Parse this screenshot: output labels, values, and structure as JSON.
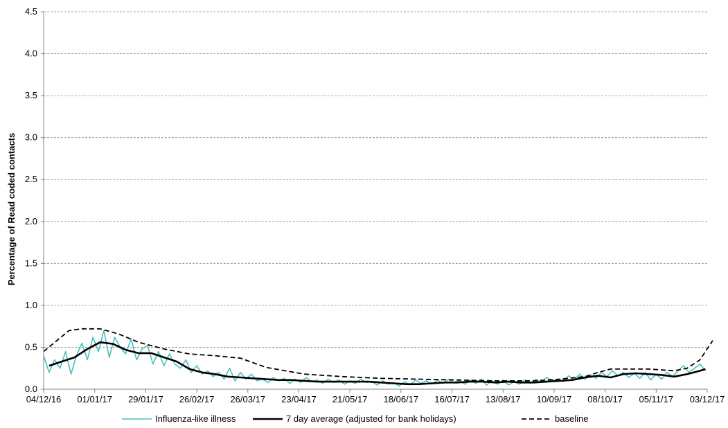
{
  "chart_data": {
    "type": "line",
    "title": "",
    "xlabel": "",
    "ylabel": "Percentage of Read coded contacts",
    "ylim": [
      0,
      4.5
    ],
    "yticks": [
      "0.0",
      "0.5",
      "1.0",
      "1.5",
      "2.0",
      "2.5",
      "3.0",
      "3.5",
      "4.0",
      "4.5"
    ],
    "xlim": [
      "04/12/16",
      "03/12/17"
    ],
    "xticks": [
      "04/12/16",
      "01/01/17",
      "29/01/17",
      "26/02/17",
      "26/03/17",
      "23/04/17",
      "21/05/17",
      "18/06/17",
      "16/07/17",
      "13/08/17",
      "10/09/17",
      "08/10/17",
      "05/11/17",
      "03/12/17"
    ],
    "grid": "horizontal dashed",
    "legend_position": "bottom",
    "colors": {
      "ili": "#4bbfbf",
      "avg": "#000000",
      "baseline": "#000000",
      "grid": "#8c8c8c"
    },
    "series": [
      {
        "name": "Influenza-like illness",
        "style": "solid-thin",
        "x": [
          "04/12/16",
          "07/12/16",
          "10/12/16",
          "13/12/16",
          "16/12/16",
          "19/12/16",
          "22/12/16",
          "25/12/16",
          "28/12/16",
          "31/12/16",
          "03/01/17",
          "06/01/17",
          "09/01/17",
          "12/01/17",
          "15/01/17",
          "18/01/17",
          "21/01/17",
          "24/01/17",
          "27/01/17",
          "30/01/17",
          "02/02/17",
          "05/02/17",
          "08/02/17",
          "11/02/17",
          "14/02/17",
          "17/02/17",
          "20/02/17",
          "23/02/17",
          "26/02/17",
          "01/03/17",
          "04/03/17",
          "07/03/17",
          "10/03/17",
          "13/03/17",
          "16/03/17",
          "19/03/17",
          "22/03/17",
          "25/03/17",
          "28/03/17",
          "31/03/17",
          "03/04/17",
          "06/04/17",
          "09/04/17",
          "12/04/17",
          "15/04/17",
          "18/04/17",
          "21/04/17",
          "24/04/17",
          "27/04/17",
          "30/04/17",
          "03/05/17",
          "06/05/17",
          "09/05/17",
          "12/05/17",
          "15/05/17",
          "18/05/17",
          "21/05/17",
          "24/05/17",
          "27/05/17",
          "30/05/17",
          "02/06/17",
          "05/06/17",
          "08/06/17",
          "11/06/17",
          "14/06/17",
          "17/06/17",
          "20/06/17",
          "23/06/17",
          "26/06/17",
          "29/06/17",
          "02/07/17",
          "05/07/17",
          "08/07/17",
          "11/07/17",
          "14/07/17",
          "17/07/17",
          "20/07/17",
          "23/07/17",
          "26/07/17",
          "29/07/17",
          "01/08/17",
          "04/08/17",
          "07/08/17",
          "10/08/17",
          "13/08/17",
          "16/08/17",
          "19/08/17",
          "22/08/17",
          "25/08/17",
          "28/08/17",
          "31/08/17",
          "03/09/17",
          "06/09/17",
          "09/09/17",
          "12/09/17",
          "15/09/17",
          "18/09/17",
          "21/09/17",
          "24/09/17",
          "27/09/17",
          "30/09/17",
          "03/10/17",
          "06/10/17",
          "09/10/17",
          "12/10/17",
          "15/10/17",
          "18/10/17",
          "21/10/17",
          "24/10/17",
          "27/10/17",
          "30/10/17",
          "02/11/17",
          "05/11/17",
          "08/11/17",
          "11/11/17",
          "14/11/17",
          "17/11/17",
          "20/11/17",
          "23/11/17",
          "26/11/17",
          "29/11/17",
          "02/12/17"
        ],
        "values": [
          0.4,
          0.2,
          0.35,
          0.25,
          0.45,
          0.18,
          0.4,
          0.55,
          0.35,
          0.62,
          0.45,
          0.7,
          0.38,
          0.62,
          0.5,
          0.42,
          0.6,
          0.35,
          0.48,
          0.52,
          0.3,
          0.45,
          0.28,
          0.42,
          0.3,
          0.25,
          0.35,
          0.2,
          0.28,
          0.18,
          0.22,
          0.15,
          0.2,
          0.12,
          0.25,
          0.1,
          0.2,
          0.12,
          0.18,
          0.1,
          0.12,
          0.08,
          0.14,
          0.1,
          0.13,
          0.07,
          0.12,
          0.08,
          0.14,
          0.09,
          0.11,
          0.07,
          0.12,
          0.08,
          0.11,
          0.06,
          0.1,
          0.07,
          0.12,
          0.08,
          0.09,
          0.05,
          0.1,
          0.06,
          0.08,
          0.04,
          0.09,
          0.05,
          0.11,
          0.07,
          0.1,
          0.06,
          0.11,
          0.07,
          0.12,
          0.08,
          0.1,
          0.06,
          0.11,
          0.07,
          0.12,
          0.05,
          0.1,
          0.06,
          0.11,
          0.05,
          0.09,
          0.06,
          0.11,
          0.07,
          0.12,
          0.08,
          0.14,
          0.1,
          0.12,
          0.09,
          0.16,
          0.11,
          0.18,
          0.12,
          0.17,
          0.13,
          0.2,
          0.15,
          0.22,
          0.16,
          0.2,
          0.14,
          0.19,
          0.13,
          0.2,
          0.11,
          0.18,
          0.12,
          0.2,
          0.15,
          0.22,
          0.28,
          0.2,
          0.25,
          0.3,
          0.22
        ]
      },
      {
        "name": "7 day average (adjusted for bank holidays)",
        "style": "solid-thick",
        "x": [
          "07/12/16",
          "14/12/16",
          "21/12/16",
          "28/12/16",
          "04/01/17",
          "11/01/17",
          "18/01/17",
          "25/01/17",
          "01/02/17",
          "08/02/17",
          "15/02/17",
          "22/02/17",
          "01/03/17",
          "08/03/17",
          "15/03/17",
          "22/03/17",
          "29/03/17",
          "05/04/17",
          "12/04/17",
          "19/04/17",
          "26/04/17",
          "03/05/17",
          "10/05/17",
          "17/05/17",
          "24/05/17",
          "31/05/17",
          "07/06/17",
          "14/06/17",
          "21/06/17",
          "28/06/17",
          "05/07/17",
          "12/07/17",
          "19/07/17",
          "26/07/17",
          "02/08/17",
          "09/08/17",
          "16/08/17",
          "23/08/17",
          "30/08/17",
          "06/09/17",
          "13/09/17",
          "20/09/17",
          "27/09/17",
          "04/10/17",
          "11/10/17",
          "18/10/17",
          "25/10/17",
          "01/11/17",
          "08/11/17",
          "15/11/17",
          "22/11/17",
          "29/11/17",
          "02/12/17"
        ],
        "values": [
          0.28,
          0.33,
          0.38,
          0.48,
          0.56,
          0.54,
          0.47,
          0.43,
          0.43,
          0.38,
          0.33,
          0.24,
          0.2,
          0.18,
          0.15,
          0.14,
          0.13,
          0.12,
          0.11,
          0.11,
          0.1,
          0.09,
          0.09,
          0.09,
          0.09,
          0.09,
          0.08,
          0.07,
          0.06,
          0.06,
          0.07,
          0.08,
          0.08,
          0.09,
          0.09,
          0.08,
          0.09,
          0.08,
          0.08,
          0.09,
          0.1,
          0.11,
          0.14,
          0.16,
          0.14,
          0.18,
          0.19,
          0.18,
          0.17,
          0.15,
          0.18,
          0.22,
          0.24
        ]
      },
      {
        "name": "baseline",
        "style": "dashed",
        "x": [
          "04/12/16",
          "18/12/16",
          "25/12/16",
          "04/01/17",
          "14/01/17",
          "25/01/17",
          "08/02/17",
          "22/02/17",
          "08/03/17",
          "22/03/17",
          "05/04/17",
          "26/04/17",
          "17/05/17",
          "07/06/17",
          "28/06/17",
          "19/07/17",
          "09/08/17",
          "30/08/17",
          "13/09/17",
          "27/09/17",
          "04/10/17",
          "11/10/17",
          "01/11/17",
          "15/11/17",
          "22/11/17",
          "29/11/17",
          "06/12/17"
        ],
        "values": [
          0.45,
          0.7,
          0.72,
          0.72,
          0.66,
          0.56,
          0.48,
          0.42,
          0.4,
          0.37,
          0.26,
          0.18,
          0.15,
          0.13,
          0.12,
          0.11,
          0.1,
          0.1,
          0.12,
          0.15,
          0.2,
          0.24,
          0.24,
          0.22,
          0.25,
          0.35,
          0.58
        ]
      }
    ]
  }
}
